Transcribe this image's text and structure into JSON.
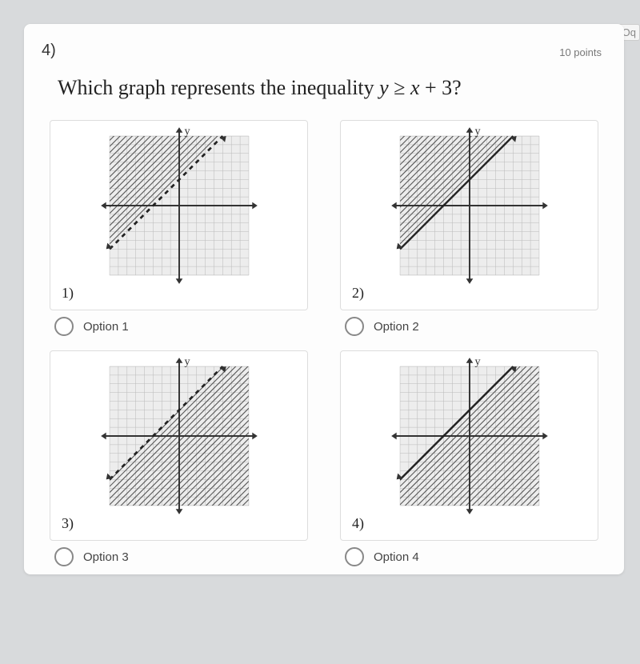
{
  "url_fragment": "…submission=Chgls-LwxwqSEAjBtLOq",
  "question_number": "4)",
  "points_label": "10 points",
  "question_html": "Which graph represents the inequality <i>y</i> ≥ <i>x</i> + 3?",
  "options": [
    {
      "num": "1)",
      "label": "Option 1"
    },
    {
      "num": "2)",
      "label": "Option 2"
    },
    {
      "num": "3)",
      "label": "Option 3"
    },
    {
      "num": "4)",
      "label": "Option 4"
    }
  ],
  "graph": {
    "grid_extent": 8,
    "unit": 10,
    "bg_color": "#ededed",
    "grid_color": "#bbbbbb",
    "axis_color": "#333333",
    "hatch_color": "#555555",
    "line_solid_color": "#222222",
    "line_dash_color": "#222222",
    "intercept": 3,
    "slope": 1
  },
  "panels": [
    {
      "line_style": "dashed",
      "shade": "above",
      "intercept": 3
    },
    {
      "line_style": "solid",
      "shade": "above",
      "intercept": 3
    },
    {
      "line_style": "dashed",
      "shade": "below",
      "intercept": 3
    },
    {
      "line_style": "solid",
      "shade": "below",
      "intercept": 3
    }
  ]
}
